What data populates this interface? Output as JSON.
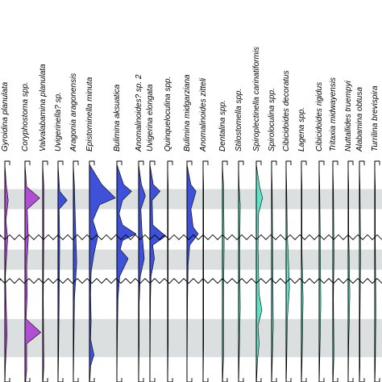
{
  "chart_data": {
    "type": "area",
    "orientation": "vertical-range-chart",
    "depth_axis": "downward",
    "grid": false,
    "legend": "none",
    "shaded_bands": [
      {
        "from": 0.11,
        "to": 0.2
      },
      {
        "from": 0.38,
        "to": 0.47
      },
      {
        "from": 0.69,
        "to": 0.86
      }
    ],
    "unconformities": [
      0.325,
      0.52
    ],
    "colors": {
      "purple": "#b04fd3",
      "blue": "#3f51d9",
      "cyan": "#5fe3c8",
      "band": "#dcdfe0",
      "line": "#000000"
    },
    "taxa": [
      {
        "name": "Gyroidina planulata",
        "label": "Gyroidina planulata",
        "color": "purple",
        "profile": [
          [
            0.1,
            0.3
          ],
          [
            0.16,
            0.6
          ],
          [
            0.25,
            0.2
          ],
          [
            0.33,
            0.5
          ],
          [
            0.5,
            0.1
          ],
          [
            0.76,
            0.4
          ],
          [
            0.9,
            0.1
          ]
        ]
      },
      {
        "name": "Coryphostoma spp.",
        "label": "Coryphostoma spp.",
        "color": "purple",
        "profile": [
          [
            0.1,
            0.3
          ],
          [
            0.15,
            2.6
          ],
          [
            0.2,
            0.4
          ],
          [
            0.33,
            0.6
          ],
          [
            0.45,
            0.3
          ],
          [
            0.58,
            0.4
          ],
          [
            0.69,
            0.2
          ],
          [
            0.75,
            2.8
          ],
          [
            0.8,
            0.3
          ],
          [
            0.92,
            0.3
          ]
        ]
      },
      {
        "name": "Valvalabamina planulata",
        "label": "Valvalabamina planulata",
        "color": "purple",
        "profile": [
          [
            0.1,
            0.2
          ],
          [
            0.3,
            0.2
          ],
          [
            0.6,
            0.1
          ],
          [
            0.9,
            0.2
          ]
        ]
      },
      {
        "name": "Uvigerinella? sp.",
        "label": "Uvigerinella? sp.",
        "color": "blue",
        "profile": [
          [
            0.12,
            0.3
          ],
          [
            0.16,
            1.6
          ],
          [
            0.2,
            0.2
          ],
          [
            0.35,
            0.3
          ],
          [
            0.6,
            0.2
          ],
          [
            0.85,
            0.1
          ]
        ]
      },
      {
        "name": "Aragonia aragonensis",
        "label": "Aragonia aragonensis",
        "color": "blue",
        "profile": [
          [
            0.1,
            0.2
          ],
          [
            0.2,
            0.3
          ],
          [
            0.44,
            0.6
          ],
          [
            0.6,
            0.2
          ],
          [
            0.8,
            0.1
          ]
        ]
      },
      {
        "name": "Epistominella minuta",
        "label": "Epistominella minuta",
        "color": "blue",
        "profile": [
          [
            0.09,
            2.2
          ],
          [
            0.12,
            3.4
          ],
          [
            0.15,
            4.6
          ],
          [
            0.18,
            1.8
          ],
          [
            0.25,
            0.6
          ],
          [
            0.32,
            1.5
          ],
          [
            0.4,
            0.8
          ],
          [
            0.48,
            0.3
          ],
          [
            0.58,
            0.2
          ],
          [
            0.7,
            0.3
          ],
          [
            0.78,
            0.2
          ],
          [
            0.85,
            0.8
          ],
          [
            0.9,
            0.2
          ]
        ]
      },
      {
        "name": "Bulimina aksuatica",
        "label": "Bulimina aksuatica",
        "color": "blue",
        "profile": [
          [
            0.09,
            1.2
          ],
          [
            0.12,
            2.6
          ],
          [
            0.16,
            1.0
          ],
          [
            0.22,
            0.4
          ],
          [
            0.27,
            1.0
          ],
          [
            0.31,
            3.4
          ],
          [
            0.34,
            1.0
          ],
          [
            0.38,
            0.6
          ],
          [
            0.42,
            2.0
          ],
          [
            0.5,
            0.5
          ],
          [
            0.6,
            0.2
          ],
          [
            0.75,
            0.1
          ]
        ]
      },
      {
        "name": "Anomalinoides? sp. 2",
        "label": "Anomalinoides? sp. 2",
        "color": "blue",
        "profile": [
          [
            0.09,
            0.5
          ],
          [
            0.14,
            1.2
          ],
          [
            0.2,
            0.4
          ],
          [
            0.3,
            0.6
          ],
          [
            0.42,
            1.0
          ],
          [
            0.5,
            0.3
          ],
          [
            0.62,
            0.1
          ],
          [
            0.8,
            0.1
          ]
        ]
      },
      {
        "name": "Uvigerina elongata",
        "label": "Uvigerina elongata",
        "color": "blue",
        "profile": [
          [
            0.09,
            0.6
          ],
          [
            0.12,
            1.8
          ],
          [
            0.16,
            0.4
          ],
          [
            0.27,
            0.5
          ],
          [
            0.32,
            2.8
          ],
          [
            0.36,
            0.5
          ],
          [
            0.42,
            0.8
          ],
          [
            0.5,
            0.2
          ],
          [
            0.6,
            0.1
          ]
        ]
      },
      {
        "name": "Quinqueloculina spp.",
        "label": "Quinqueloculina spp.",
        "color": "blue",
        "profile": [
          [
            0.1,
            0.1
          ],
          [
            0.3,
            0.1
          ],
          [
            0.5,
            0.1
          ],
          [
            0.8,
            0.1
          ]
        ]
      },
      {
        "name": "Bulimina midgarziana",
        "label": "Bulimina midgarziana",
        "color": "blue",
        "profile": [
          [
            0.09,
            0.7
          ],
          [
            0.12,
            1.6
          ],
          [
            0.2,
            0.7
          ],
          [
            0.28,
            1.1
          ],
          [
            0.31,
            2.0
          ],
          [
            0.36,
            0.5
          ],
          [
            0.45,
            0.2
          ],
          [
            0.6,
            0.1
          ]
        ]
      },
      {
        "name": "Anomalinoides zitteli",
        "label": "Anomalinoides zitteli",
        "color": "blue",
        "profile": [
          [
            0.1,
            0.1
          ],
          [
            0.3,
            0.1
          ],
          [
            0.5,
            0.1
          ],
          [
            0.8,
            0.1
          ]
        ]
      },
      {
        "name": "Dentalina spp.",
        "label": "Dentalina spp.",
        "color": "cyan",
        "profile": [
          [
            0.1,
            0.2
          ],
          [
            0.35,
            0.3
          ],
          [
            0.6,
            0.2
          ],
          [
            0.85,
            0.2
          ]
        ]
      },
      {
        "name": "Stilostomella spp.",
        "label": "Stilostomella spp.",
        "color": "cyan",
        "profile": [
          [
            0.1,
            0.1
          ],
          [
            0.18,
            0.3
          ],
          [
            0.4,
            0.2
          ],
          [
            0.64,
            0.3
          ],
          [
            0.88,
            0.1
          ]
        ]
      },
      {
        "name": "Spiroplectinella carinatiformis",
        "label": "Spiroplectinella carinatiformis",
        "color": "cyan",
        "profile": [
          [
            0.1,
            0.6
          ],
          [
            0.15,
            1.1
          ],
          [
            0.22,
            0.4
          ],
          [
            0.38,
            0.3
          ],
          [
            0.58,
            0.5
          ],
          [
            0.65,
            1.0
          ],
          [
            0.72,
            0.3
          ],
          [
            0.8,
            0.5
          ],
          [
            0.88,
            0.2
          ]
        ]
      },
      {
        "name": "Spiroloculina spp.",
        "label": "Spiroloculina spp.",
        "color": "cyan",
        "profile": [
          [
            0.1,
            0.1
          ],
          [
            0.4,
            0.2
          ],
          [
            0.72,
            0.3
          ],
          [
            0.9,
            0.1
          ]
        ]
      },
      {
        "name": "Cibicidoides decoratus",
        "label": "Cibicidoides decoratus",
        "color": "cyan",
        "profile": [
          [
            0.1,
            0.1
          ],
          [
            0.3,
            0.2
          ],
          [
            0.55,
            0.6
          ],
          [
            0.7,
            0.2
          ],
          [
            0.9,
            0.1
          ]
        ]
      },
      {
        "name": "Lagena spp.",
        "label": "Lagena spp.",
        "color": "cyan",
        "profile": [
          [
            0.1,
            0.1
          ],
          [
            0.4,
            0.1
          ],
          [
            0.6,
            0.3
          ],
          [
            0.9,
            0.1
          ]
        ]
      },
      {
        "name": "Cibicidoides rigidus",
        "label": "Cibicidoides rigidus",
        "color": "cyan",
        "profile": [
          [
            0.1,
            0.1
          ],
          [
            0.35,
            0.2
          ],
          [
            0.62,
            0.3
          ],
          [
            0.88,
            0.1
          ]
        ]
      },
      {
        "name": "Tritaxia midwayensis",
        "label": "Tritaxia midwayensis",
        "color": "cyan",
        "profile": [
          [
            0.1,
            0.1
          ],
          [
            0.4,
            0.2
          ],
          [
            0.6,
            0.1
          ],
          [
            0.85,
            0.2
          ]
        ]
      },
      {
        "name": "Nuttallides truempyi",
        "label": "Nuttallides truempyi",
        "color": "cyan",
        "profile": [
          [
            0.1,
            0.1
          ],
          [
            0.3,
            0.1
          ],
          [
            0.58,
            0.3
          ],
          [
            0.8,
            0.1
          ]
        ]
      },
      {
        "name": "Alabamina obtusa",
        "label": "Alabamina obtusa",
        "color": "cyan",
        "profile": [
          [
            0.1,
            0.1
          ],
          [
            0.4,
            0.2
          ],
          [
            0.7,
            0.1
          ],
          [
            0.9,
            0.1
          ]
        ]
      },
      {
        "name": "Turrilina brevispira",
        "label": "Turrilina brevispira",
        "color": "cyan",
        "profile": [
          [
            0.1,
            0.1
          ],
          [
            0.35,
            0.1
          ],
          [
            0.65,
            0.2
          ],
          [
            0.9,
            0.1
          ]
        ]
      }
    ]
  }
}
